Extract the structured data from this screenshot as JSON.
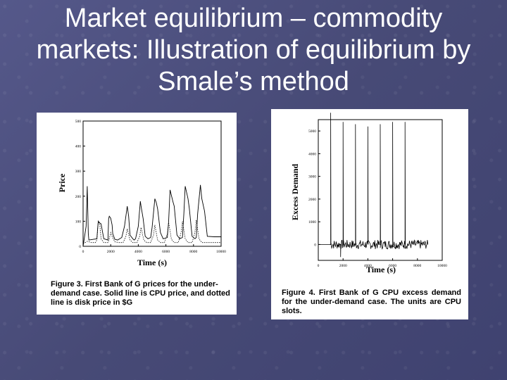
{
  "slide": {
    "title": "Market equilibrium – commodity markets: Illustration of equilibrium by Smale’s method"
  },
  "figures": [
    {
      "caption": "Figure 3. First Bank of G prices for the under-demand case. Solid line is CPU price, and dotted line is disk price in $G"
    },
    {
      "caption": "Figure 4. First Bank of G CPU excess demand for the under-demand case. The units are CPU slots."
    }
  ],
  "chart_data": [
    {
      "type": "line",
      "xlabel": "Time (s)",
      "ylabel": "Price",
      "xlim": [
        0,
        10000
      ],
      "ylim": [
        0,
        500
      ],
      "xticks": [
        "0",
        "2000",
        "4000",
        "6000",
        "8000",
        "10000"
      ],
      "yticks": [
        "0",
        "100",
        "200",
        "300",
        "400",
        "500"
      ],
      "grid": false,
      "series": [
        {
          "style": "solid",
          "x": [
            0,
            220,
            300,
            380,
            420,
            1000,
            1050,
            1100,
            1150,
            1300,
            1500,
            1800,
            1850,
            1900,
            2000,
            2100,
            2150,
            2300,
            2500,
            2800,
            3000,
            3200,
            3300,
            3400,
            3600,
            3700,
            3800,
            4000,
            4150,
            4200,
            4350,
            4500,
            4700,
            4900,
            5000,
            5200,
            5300,
            5400,
            5600,
            5800,
            6100,
            6200,
            6300,
            6500,
            6600,
            6800,
            7000,
            7200,
            7300,
            7400,
            7600,
            7700,
            7900,
            8100,
            8200,
            8300,
            8500,
            8600,
            8800,
            9000,
            9500,
            10000
          ],
          "y": [
            0,
            80,
            240,
            50,
            25,
            30,
            70,
            100,
            95,
            90,
            30,
            25,
            110,
            120,
            112,
            85,
            50,
            28,
            25,
            35,
            80,
            160,
            120,
            45,
            30,
            25,
            30,
            80,
            180,
            160,
            110,
            40,
            30,
            35,
            75,
            190,
            175,
            150,
            55,
            30,
            35,
            100,
            225,
            180,
            160,
            45,
            30,
            35,
            130,
            240,
            190,
            150,
            40,
            30,
            35,
            130,
            245,
            190,
            140,
            40,
            38,
            38
          ]
        },
        {
          "style": "dotted",
          "x": [
            0,
            300,
            600,
            900,
            1000,
            1100,
            1200,
            1300,
            1500,
            1800,
            1900,
            2000,
            2100,
            2300,
            2600,
            2900,
            3100,
            3200,
            3400,
            3600,
            3900,
            4100,
            4200,
            4400,
            4600,
            4900,
            5100,
            5200,
            5400,
            5600,
            5900,
            6100,
            6200,
            6400,
            6600,
            6900,
            7100,
            7200,
            7400,
            7600,
            7900,
            8100,
            8200,
            8400,
            8600,
            9000,
            10000
          ],
          "y": [
            10,
            20,
            15,
            15,
            25,
            100,
            95,
            30,
            15,
            15,
            30,
            55,
            40,
            18,
            15,
            15,
            40,
            70,
            25,
            15,
            15,
            40,
            75,
            25,
            15,
            15,
            45,
            85,
            25,
            15,
            15,
            50,
            95,
            28,
            15,
            15,
            55,
            100,
            30,
            15,
            15,
            55,
            105,
            30,
            15,
            15,
            15
          ]
        }
      ]
    },
    {
      "type": "line",
      "xlabel": "Time (s)",
      "ylabel": "Excess Demand",
      "xlim": [
        0,
        10000
      ],
      "ylim": [
        -700,
        5500
      ],
      "xticks": [
        "0",
        "2000",
        "4000",
        "6000",
        "8000",
        "10000"
      ],
      "yticks": [
        "0",
        "1000",
        "2000",
        "3000",
        "4000",
        "5000"
      ],
      "grid": false,
      "series": [
        {
          "style": "solid",
          "noise_amplitude": 200,
          "spikes": [
            {
              "x": 1000,
              "y": 5800
            },
            {
              "x": 1800,
              "y": -550
            },
            {
              "x": 2000,
              "y": 5400
            },
            {
              "x": 3000,
              "y": 5300
            },
            {
              "x": 4000,
              "y": 5200
            },
            {
              "x": 5000,
              "y": 5300
            },
            {
              "x": 6000,
              "y": 5400
            },
            {
              "x": 7000,
              "y": 5400
            }
          ]
        }
      ]
    }
  ]
}
